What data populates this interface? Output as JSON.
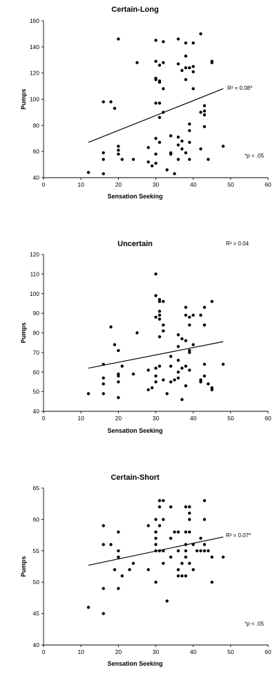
{
  "chart_data": [
    {
      "type": "scatter",
      "title": "Certain-Long",
      "xlabel": "Sensation Seeking",
      "ylabel": "Pumps",
      "xlim": [
        0,
        60
      ],
      "ylim": [
        40,
        160
      ],
      "xticks": [
        "0",
        "10",
        "20",
        "30",
        "40",
        "50",
        "60"
      ],
      "yticks": [
        "40",
        "60",
        "80",
        "100",
        "120",
        "140",
        "160"
      ],
      "grid": false,
      "trendline": {
        "x": [
          12,
          48
        ],
        "y": [
          67,
          108
        ]
      },
      "r2_label": "R² = 0.08*",
      "footnote": {
        "sym": "*",
        "p": "p",
        "rest": " < .05"
      },
      "points": [
        [
          12,
          44
        ],
        [
          16,
          43
        ],
        [
          16,
          54
        ],
        [
          16,
          59
        ],
        [
          16,
          98
        ],
        [
          18,
          98
        ],
        [
          19,
          93
        ],
        [
          20,
          64
        ],
        [
          20,
          61
        ],
        [
          20,
          58
        ],
        [
          20,
          146
        ],
        [
          21,
          54
        ],
        [
          24,
          54
        ],
        [
          25,
          128
        ],
        [
          28,
          63
        ],
        [
          28,
          52
        ],
        [
          29,
          49
        ],
        [
          30,
          51
        ],
        [
          30,
          145
        ],
        [
          30,
          129
        ],
        [
          30,
          116
        ],
        [
          30,
          115
        ],
        [
          30,
          97
        ],
        [
          30,
          70
        ],
        [
          30,
          58
        ],
        [
          31,
          114
        ],
        [
          31,
          113
        ],
        [
          31,
          126
        ],
        [
          31,
          97
        ],
        [
          31,
          86
        ],
        [
          31,
          67
        ],
        [
          32,
          144
        ],
        [
          32,
          128
        ],
        [
          32,
          108
        ],
        [
          32,
          90
        ],
        [
          33,
          46
        ],
        [
          34,
          72
        ],
        [
          34,
          59
        ],
        [
          34,
          58
        ],
        [
          35,
          43
        ],
        [
          36,
          146
        ],
        [
          36,
          127
        ],
        [
          36,
          71
        ],
        [
          36,
          65
        ],
        [
          36,
          54
        ],
        [
          37,
          122
        ],
        [
          37,
          68
        ],
        [
          37,
          62
        ],
        [
          38,
          143
        ],
        [
          38,
          133
        ],
        [
          38,
          124
        ],
        [
          38,
          115
        ],
        [
          38,
          59
        ],
        [
          39,
          81
        ],
        [
          39,
          76
        ],
        [
          39,
          67
        ],
        [
          39,
          54
        ],
        [
          39,
          124
        ],
        [
          40,
          143
        ],
        [
          40,
          125
        ],
        [
          40,
          121
        ],
        [
          40,
          108
        ],
        [
          42,
          150
        ],
        [
          42,
          90
        ],
        [
          42,
          62
        ],
        [
          43,
          95
        ],
        [
          43,
          91
        ],
        [
          43,
          88
        ],
        [
          43,
          79
        ],
        [
          44,
          54
        ],
        [
          45,
          129
        ],
        [
          45,
          128
        ],
        [
          48,
          64
        ]
      ]
    },
    {
      "type": "scatter",
      "title": "Uncertain",
      "xlabel": "Sensation Seeking",
      "ylabel": "Pumps",
      "xlim": [
        0,
        60
      ],
      "ylim": [
        40,
        120
      ],
      "xticks": [
        "0",
        "10",
        "20",
        "30",
        "40",
        "50",
        "60"
      ],
      "yticks": [
        "40",
        "50",
        "60",
        "70",
        "80",
        "90",
        "100",
        "110",
        "120"
      ],
      "grid": false,
      "trendline": {
        "x": [
          12,
          48
        ],
        "y": [
          62,
          75.5
        ]
      },
      "r2_label": "R² = 0.04",
      "points": [
        [
          12,
          49
        ],
        [
          16,
          64
        ],
        [
          16,
          57
        ],
        [
          16,
          54
        ],
        [
          16,
          49
        ],
        [
          18,
          83
        ],
        [
          19,
          74
        ],
        [
          20,
          71
        ],
        [
          20,
          59
        ],
        [
          20,
          58
        ],
        [
          20,
          55
        ],
        [
          20,
          47
        ],
        [
          21,
          63
        ],
        [
          24,
          59
        ],
        [
          25,
          80
        ],
        [
          28,
          61
        ],
        [
          28,
          51
        ],
        [
          29,
          52
        ],
        [
          30,
          110
        ],
        [
          30,
          99
        ],
        [
          30,
          88
        ],
        [
          30,
          62
        ],
        [
          30,
          58
        ],
        [
          30,
          55
        ],
        [
          31,
          97
        ],
        [
          31,
          96
        ],
        [
          31,
          91
        ],
        [
          31,
          89
        ],
        [
          31,
          87
        ],
        [
          31,
          78
        ],
        [
          31,
          63
        ],
        [
          32,
          96
        ],
        [
          32,
          84
        ],
        [
          32,
          81
        ],
        [
          32,
          56
        ],
        [
          33,
          49
        ],
        [
          34,
          68
        ],
        [
          34,
          63
        ],
        [
          34,
          55
        ],
        [
          35,
          56
        ],
        [
          36,
          79
        ],
        [
          36,
          73
        ],
        [
          36,
          66
        ],
        [
          36,
          60
        ],
        [
          36,
          57
        ],
        [
          37,
          77
        ],
        [
          37,
          62
        ],
        [
          37,
          46
        ],
        [
          38,
          93
        ],
        [
          38,
          89
        ],
        [
          38,
          76
        ],
        [
          38,
          63
        ],
        [
          38,
          53
        ],
        [
          39,
          88
        ],
        [
          39,
          84
        ],
        [
          39,
          71
        ],
        [
          39,
          70
        ],
        [
          39,
          61
        ],
        [
          40,
          74
        ],
        [
          40,
          89
        ],
        [
          42,
          89
        ],
        [
          42,
          56
        ],
        [
          42,
          55
        ],
        [
          43,
          93
        ],
        [
          43,
          84
        ],
        [
          43,
          64
        ],
        [
          43,
          58
        ],
        [
          44,
          54
        ],
        [
          45,
          96
        ],
        [
          45,
          52
        ],
        [
          45,
          51
        ],
        [
          48,
          64
        ]
      ]
    },
    {
      "type": "scatter",
      "title": "Certain-Short",
      "xlabel": "Sensation Seeking",
      "ylabel": "Pumps",
      "xlim": [
        0,
        60
      ],
      "ylim": [
        40,
        65
      ],
      "xticks": [
        "0",
        "10",
        "20",
        "30",
        "40",
        "50",
        "60"
      ],
      "yticks": [
        "40",
        "45",
        "50",
        "55",
        "60",
        "65"
      ],
      "grid": false,
      "trendline": {
        "x": [
          12,
          48
        ],
        "y": [
          52.7,
          57.2
        ]
      },
      "r2_label": "R² = 0.07*",
      "footnote": {
        "sym": "*",
        "p": "p",
        "rest": " < .05"
      },
      "points": [
        [
          12,
          46
        ],
        [
          16,
          59
        ],
        [
          16,
          56
        ],
        [
          16,
          49
        ],
        [
          16,
          45
        ],
        [
          18,
          56
        ],
        [
          19,
          52
        ],
        [
          20,
          58
        ],
        [
          20,
          55
        ],
        [
          20,
          54
        ],
        [
          20,
          49
        ],
        [
          21,
          51
        ],
        [
          23,
          52
        ],
        [
          24,
          53
        ],
        [
          28,
          59
        ],
        [
          28,
          52
        ],
        [
          30,
          60
        ],
        [
          30,
          58
        ],
        [
          30,
          57
        ],
        [
          30,
          56
        ],
        [
          30,
          55
        ],
        [
          30,
          50
        ],
        [
          31,
          63
        ],
        [
          31,
          62
        ],
        [
          31,
          59
        ],
        [
          31,
          55
        ],
        [
          32,
          63
        ],
        [
          32,
          60
        ],
        [
          32,
          55
        ],
        [
          32,
          53
        ],
        [
          33,
          47
        ],
        [
          34,
          62
        ],
        [
          34,
          57
        ],
        [
          34,
          54
        ],
        [
          35,
          58
        ],
        [
          36,
          58
        ],
        [
          36,
          55
        ],
        [
          36,
          52
        ],
        [
          36,
          51
        ],
        [
          37,
          53
        ],
        [
          37,
          51
        ],
        [
          38,
          62
        ],
        [
          38,
          58
        ],
        [
          38,
          56
        ],
        [
          38,
          55
        ],
        [
          38,
          54
        ],
        [
          38,
          51
        ],
        [
          39,
          62
        ],
        [
          39,
          61
        ],
        [
          39,
          60
        ],
        [
          39,
          58
        ],
        [
          39,
          53
        ],
        [
          40,
          56
        ],
        [
          40,
          52
        ],
        [
          41,
          55
        ],
        [
          42,
          57
        ],
        [
          42,
          55
        ],
        [
          43,
          63
        ],
        [
          43,
          60
        ],
        [
          43,
          56
        ],
        [
          43,
          55
        ],
        [
          44,
          55
        ],
        [
          45,
          54
        ],
        [
          45,
          50
        ],
        [
          48,
          54
        ]
      ]
    }
  ]
}
